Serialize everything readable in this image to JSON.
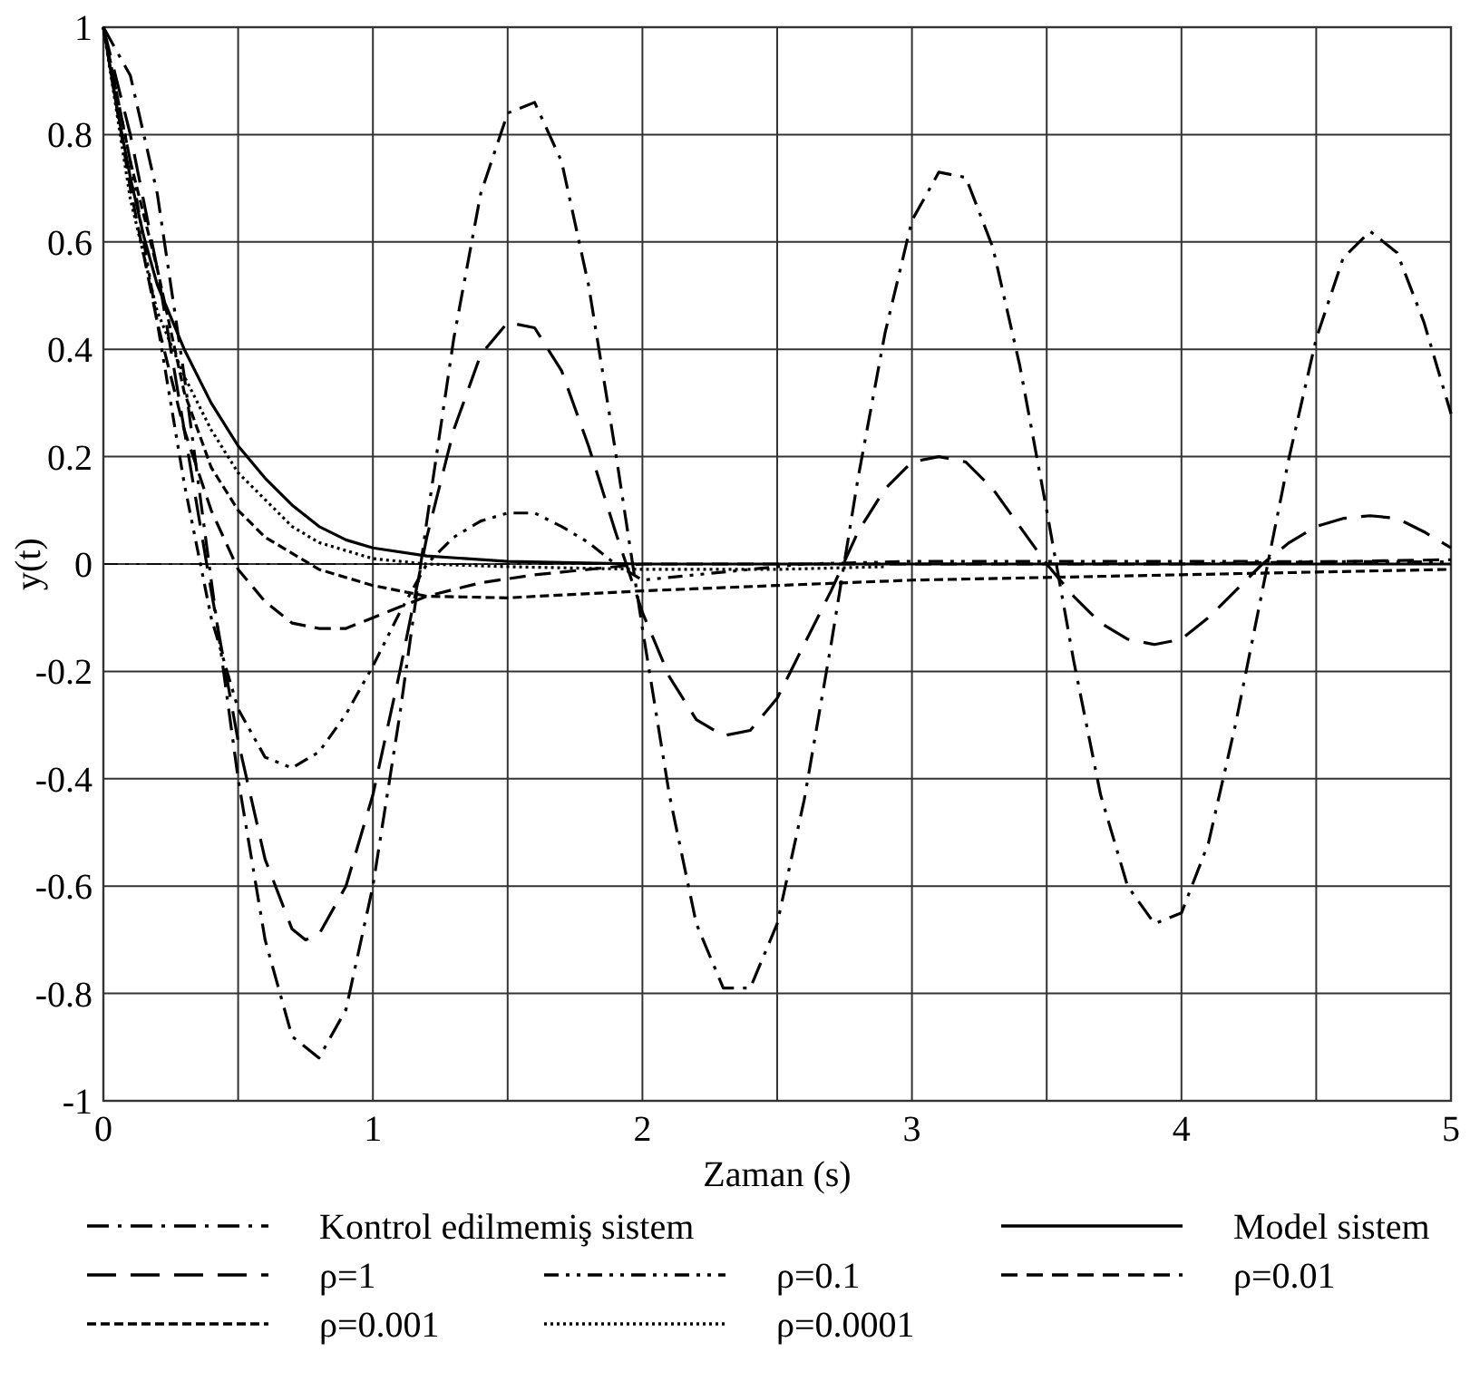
{
  "chart_data": {
    "type": "line",
    "xlabel": "Zaman (s)",
    "ylabel": "y(t)",
    "xlim": [
      0,
      5
    ],
    "ylim": [
      -1,
      1
    ],
    "xticks": [
      0,
      {
        "value": 0.5,
        "label": null
      },
      1,
      {
        "value": 1.5,
        "label": null
      },
      2,
      {
        "value": 2.5,
        "label": null
      },
      3,
      {
        "value": 3.5,
        "label": null
      },
      4,
      {
        "value": 4.5,
        "label": null
      },
      5
    ],
    "yticks": [
      -1,
      -0.8,
      -0.6,
      -0.4,
      -0.2,
      0,
      0.2,
      0.4,
      0.6,
      0.8,
      1
    ],
    "grid": true,
    "legend": "bottom",
    "marker": "none",
    "ref_lines": [
      {
        "axis": "y",
        "value": 0,
        "line_style": "dashdotdot",
        "color": "#000000"
      }
    ],
    "series": [
      {
        "name": "Kontrol edilmemiş sistem",
        "color": "#000000",
        "line_style": "dashdot",
        "x": [
          0,
          0.1,
          0.2,
          0.3,
          0.4,
          0.5,
          0.6,
          0.7,
          0.8,
          0.9,
          1,
          1.1,
          1.2,
          1.3,
          1.4,
          1.5,
          1.6,
          1.7,
          1.8,
          1.9,
          2,
          2.1,
          2.2,
          2.3,
          2.4,
          2.5,
          2.6,
          2.7,
          2.8,
          2.9,
          3,
          3.1,
          3.2,
          3.3,
          3.4,
          3.5,
          3.6,
          3.7,
          3.8,
          3.9,
          4,
          4.1,
          4.2,
          4.3,
          4.4,
          4.5,
          4.6,
          4.7,
          4.8,
          4.9,
          5
        ],
        "values": [
          1,
          0.91,
          0.69,
          0.35,
          -0.03,
          -0.4,
          -0.7,
          -0.88,
          -0.92,
          -0.83,
          -0.6,
          -0.28,
          0.08,
          0.42,
          0.69,
          0.84,
          0.86,
          0.75,
          0.52,
          0.21,
          -0.12,
          -0.43,
          -0.67,
          -0.79,
          -0.79,
          -0.67,
          -0.44,
          -0.15,
          0.16,
          0.43,
          0.64,
          0.73,
          0.72,
          0.59,
          0.37,
          0.1,
          -0.18,
          -0.43,
          -0.6,
          -0.67,
          -0.65,
          -0.52,
          -0.3,
          -0.05,
          0.2,
          0.42,
          0.57,
          0.62,
          0.58,
          0.45,
          0.28
        ]
      },
      {
        "name": "Model sistem",
        "color": "#000000",
        "line_style": "solid",
        "x": [
          0,
          0.05,
          0.1,
          0.15,
          0.2,
          0.3,
          0.4,
          0.5,
          0.6,
          0.7,
          0.8,
          0.9,
          1,
          1.2,
          1.5,
          2,
          3,
          4,
          5
        ],
        "values": [
          1,
          0.85,
          0.72,
          0.61,
          0.52,
          0.4,
          0.3,
          0.22,
          0.16,
          0.11,
          0.07,
          0.045,
          0.03,
          0.015,
          0.005,
          0,
          0,
          0,
          0
        ]
      },
      {
        "name": "ρ=1",
        "color": "#000000",
        "line_style": "longdash",
        "x": [
          0,
          0.1,
          0.2,
          0.3,
          0.4,
          0.5,
          0.6,
          0.7,
          0.75,
          0.8,
          0.9,
          1,
          1.1,
          1.2,
          1.3,
          1.4,
          1.5,
          1.6,
          1.7,
          1.8,
          1.9,
          2,
          2.1,
          2.2,
          2.3,
          2.4,
          2.5,
          2.6,
          2.7,
          2.8,
          2.9,
          3,
          3.1,
          3.2,
          3.3,
          3.4,
          3.5,
          3.6,
          3.7,
          3.8,
          3.9,
          4,
          4.1,
          4.2,
          4.3,
          4.4,
          4.5,
          4.6,
          4.7,
          4.8,
          4.9,
          5
        ],
        "values": [
          1,
          0.8,
          0.55,
          0.25,
          -0.05,
          -0.33,
          -0.55,
          -0.68,
          -0.7,
          -0.69,
          -0.6,
          -0.43,
          -0.2,
          0.05,
          0.25,
          0.39,
          0.45,
          0.44,
          0.36,
          0.22,
          0.06,
          -0.09,
          -0.21,
          -0.29,
          -0.32,
          -0.31,
          -0.25,
          -0.15,
          -0.05,
          0.06,
          0.14,
          0.19,
          0.2,
          0.19,
          0.14,
          0.07,
          0,
          -0.06,
          -0.11,
          -0.14,
          -0.15,
          -0.14,
          -0.1,
          -0.05,
          0,
          0.04,
          0.07,
          0.085,
          0.09,
          0.085,
          0.06,
          0.03
        ]
      },
      {
        "name": "ρ=0.1",
        "color": "#000000",
        "line_style": "dashdotdot",
        "x": [
          0,
          0.1,
          0.2,
          0.3,
          0.4,
          0.5,
          0.6,
          0.7,
          0.8,
          0.9,
          1,
          1.1,
          1.2,
          1.3,
          1.4,
          1.5,
          1.6,
          1.7,
          1.8,
          1.9,
          2,
          2.2,
          2.4,
          2.6,
          3,
          4,
          5
        ],
        "values": [
          1,
          0.75,
          0.45,
          0.15,
          -0.1,
          -0.27,
          -0.36,
          -0.38,
          -0.35,
          -0.28,
          -0.19,
          -0.09,
          0,
          0.05,
          0.08,
          0.095,
          0.095,
          0.07,
          0.04,
          0,
          -0.03,
          -0.02,
          -0.01,
          0,
          0.005,
          0.005,
          0.004
        ]
      },
      {
        "name": "ρ=0.01",
        "color": "#000000",
        "line_style": "dashed",
        "x": [
          0,
          0.1,
          0.2,
          0.3,
          0.4,
          0.5,
          0.6,
          0.7,
          0.8,
          0.9,
          1,
          1.1,
          1.2,
          1.4,
          1.6,
          1.8,
          2,
          3,
          4,
          5
        ],
        "values": [
          1,
          0.7,
          0.45,
          0.25,
          0.1,
          -0.01,
          -0.07,
          -0.11,
          -0.12,
          -0.12,
          -0.1,
          -0.08,
          -0.06,
          -0.035,
          -0.02,
          -0.01,
          0,
          0,
          0,
          0.008
        ]
      },
      {
        "name": "ρ=0.001",
        "color": "#000000",
        "line_style": "finedash",
        "x": [
          0,
          0.1,
          0.2,
          0.3,
          0.4,
          0.5,
          0.6,
          0.7,
          0.8,
          1,
          1.2,
          1.5,
          2,
          2.5,
          3,
          3.5,
          4,
          4.5,
          5
        ],
        "values": [
          1,
          0.75,
          0.55,
          0.32,
          0.18,
          0.1,
          0.05,
          0.02,
          -0.01,
          -0.04,
          -0.06,
          -0.063,
          -0.05,
          -0.04,
          -0.03,
          -0.025,
          -0.02,
          -0.015,
          -0.01
        ]
      },
      {
        "name": "ρ=0.0001",
        "color": "#000000",
        "line_style": "dotted",
        "x": [
          0,
          0.1,
          0.2,
          0.3,
          0.4,
          0.5,
          0.6,
          0.7,
          0.8,
          1,
          1.2,
          1.5,
          2,
          2.5,
          2.9
        ],
        "values": [
          1,
          0.68,
          0.47,
          0.35,
          0.25,
          0.17,
          0.12,
          0.07,
          0.04,
          0.01,
          0,
          -0.005,
          -0.01,
          -0.01,
          -0.005
        ]
      }
    ]
  }
}
